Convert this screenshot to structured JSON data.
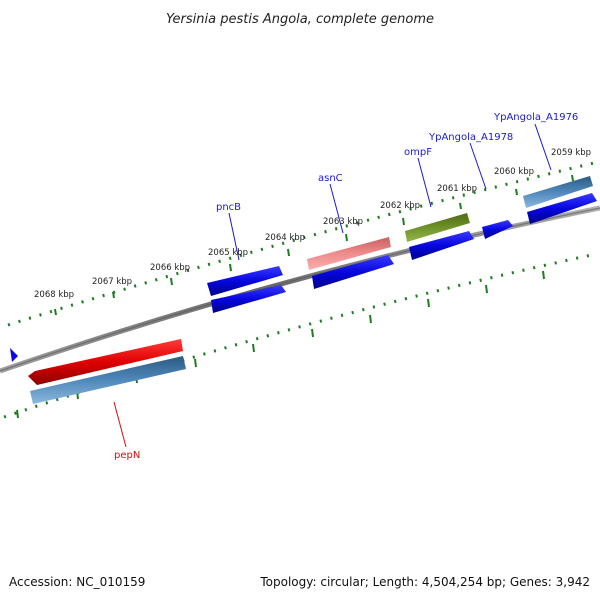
{
  "title": "Yersinia pestis Angola, complete genome",
  "footer": {
    "accession": "Accession: NC_010159",
    "summary": "Topology: circular; Length: 4,504,254 bp; Genes: 3,942"
  },
  "scale_labels": [
    "2068 kbp",
    "2067 kbp",
    "2066 kbp",
    "2065 kbp",
    "2064 kbp",
    "2063 kbp",
    "2062 kbp",
    "2061 kbp",
    "2060 kbp",
    "2059 kbp"
  ],
  "gene_labels": {
    "pncB": "pncB",
    "asnC": "asnC",
    "ompF": "ompF",
    "ypangola_a1978": "YpAngola_A1978",
    "ypangola_a1976": "YpAngola_A1976",
    "pepN": "pepN"
  },
  "colors": {
    "backbone": "#8a8a8a",
    "tick": "#1e7b1e",
    "cds_blue": "#0a0ae6",
    "steel_blue": "#4a7fb0",
    "red": "#e60000",
    "salmon": "#ef8080",
    "olive": "#6b8e23",
    "label_blue": "#1a1acc",
    "label_red": "#cc1111"
  }
}
